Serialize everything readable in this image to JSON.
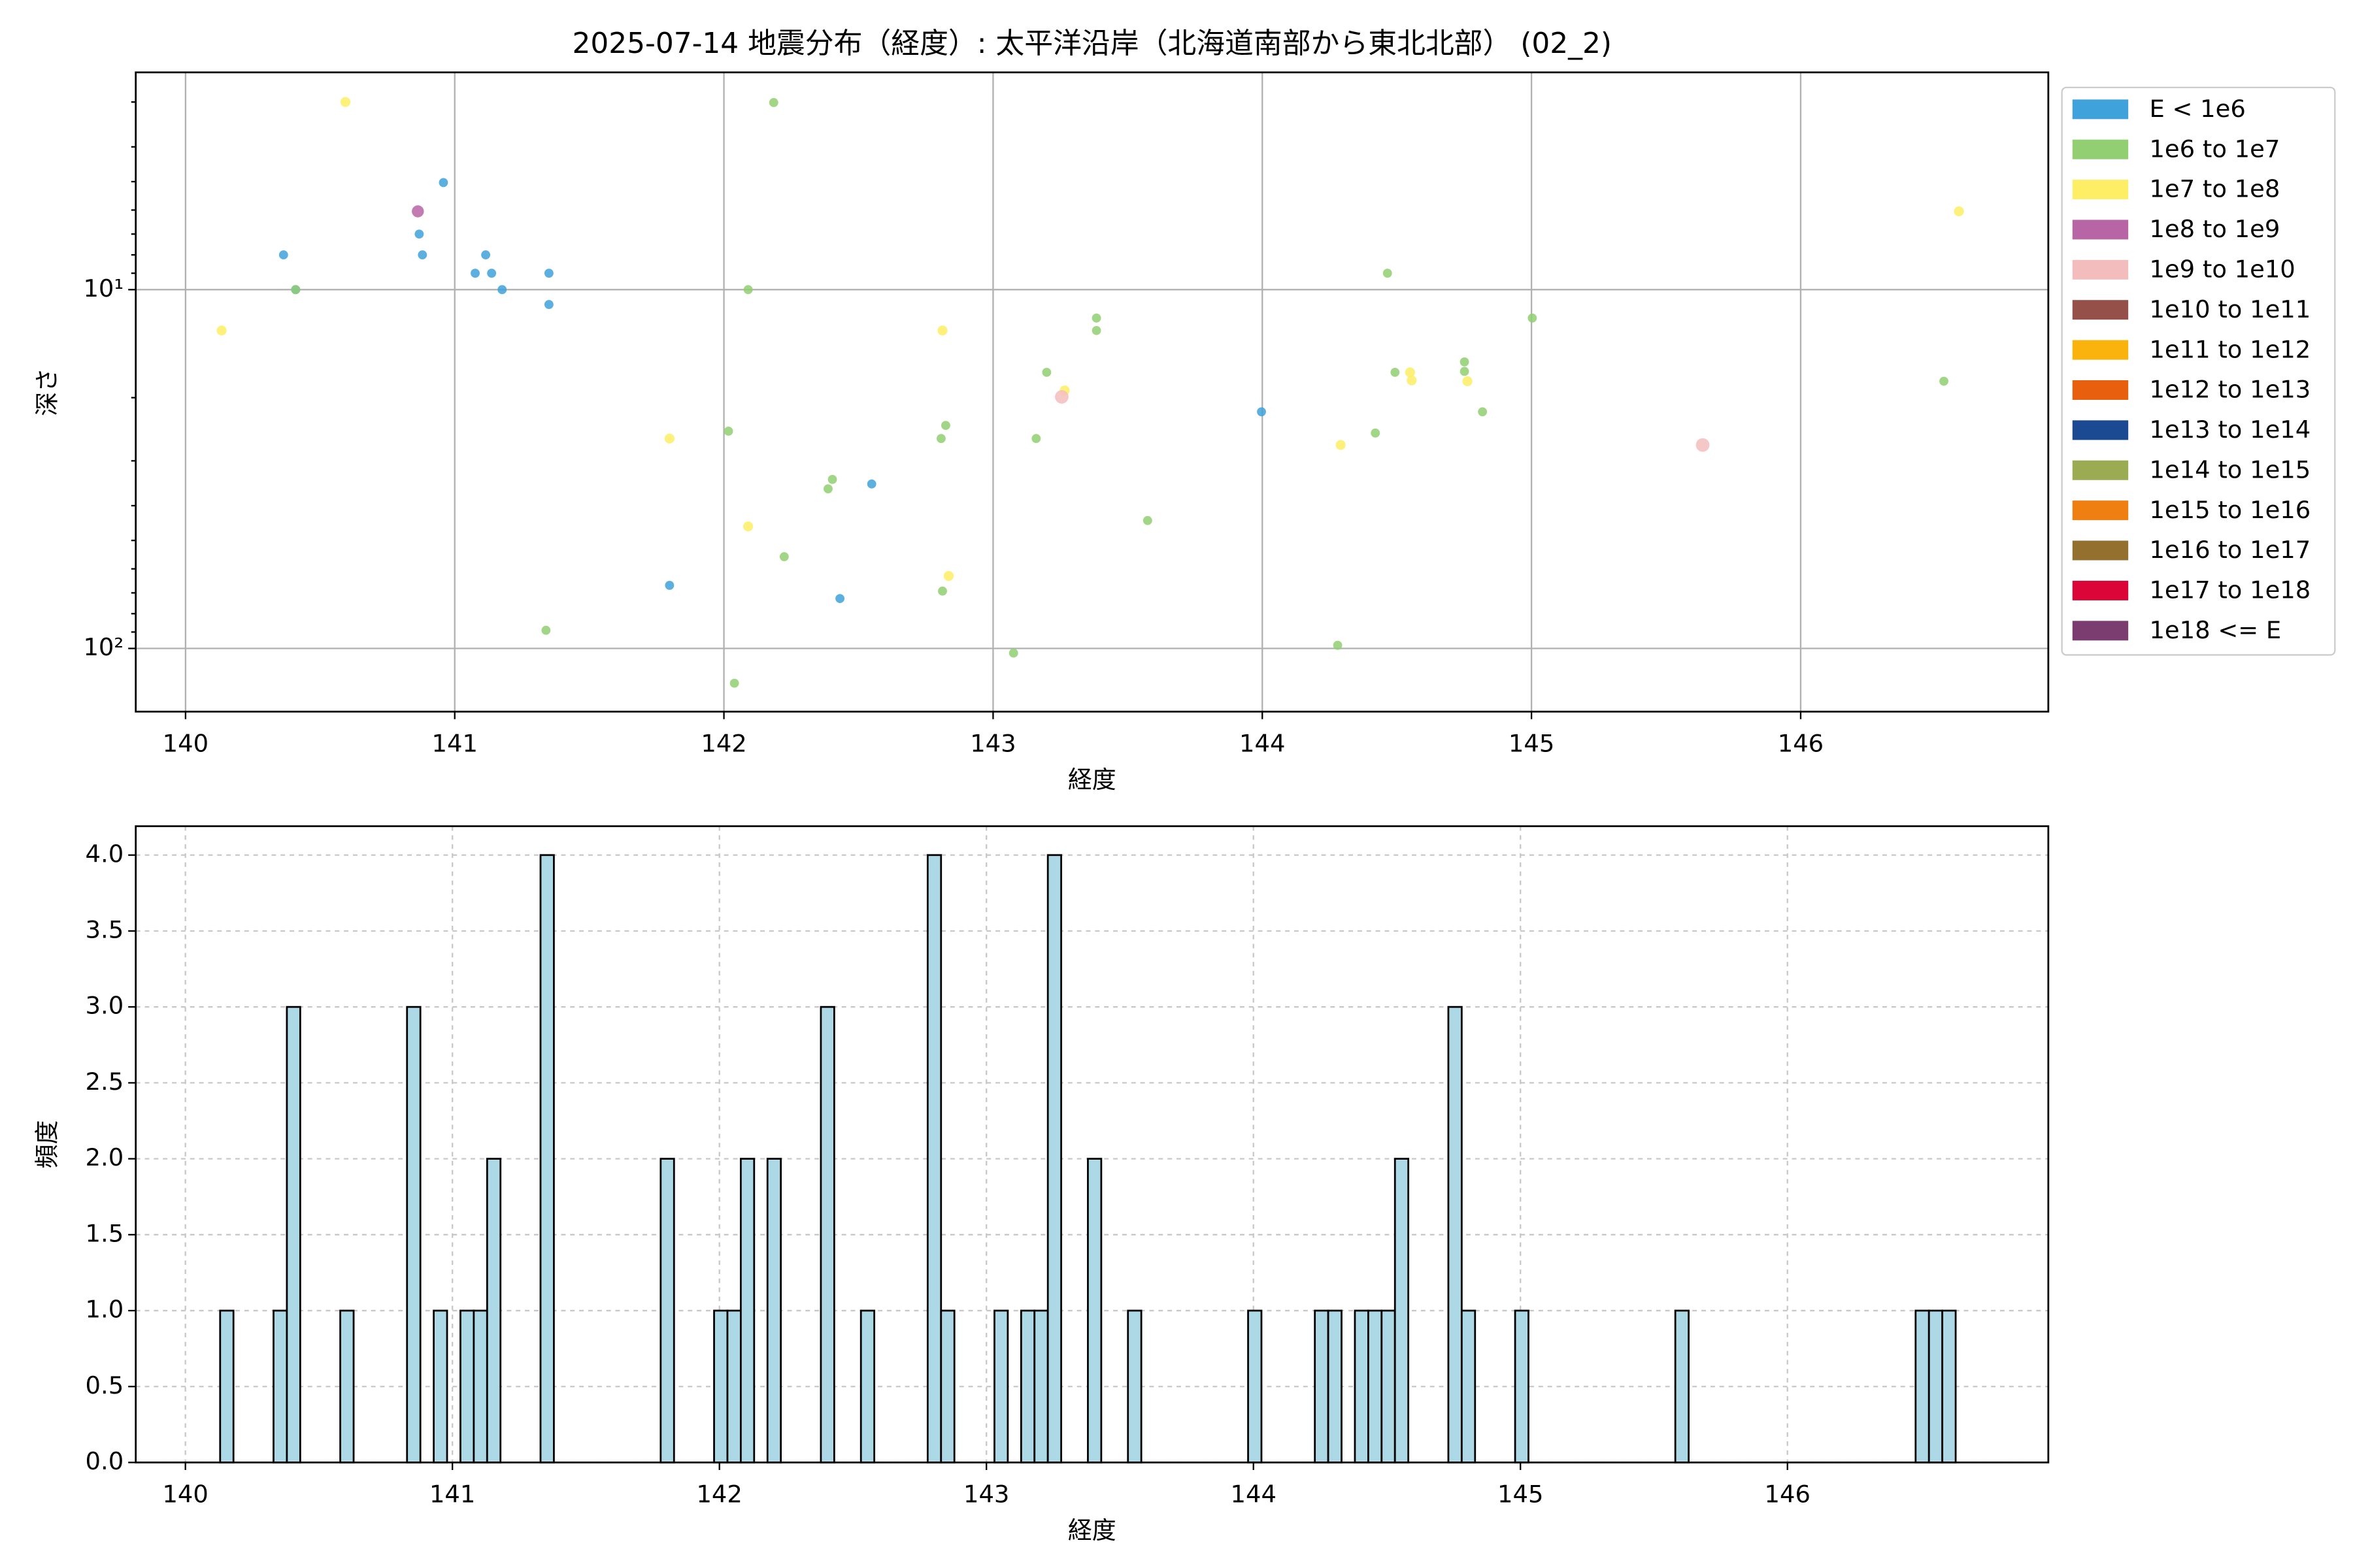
{
  "chart_data": [
    {
      "type": "scatter",
      "title": "2025-07-14 地震分布（経度）: 太平洋沿岸（北海道南部から東北北部） (02_2)",
      "xlabel": "経度",
      "ylabel": "深さ",
      "xlim": [
        139.815,
        146.92
      ],
      "xticks": [
        140,
        141,
        142,
        143,
        144,
        145,
        146
      ],
      "ylim": [
        2.48,
        150
      ],
      "yscale": "log",
      "invert_y": true,
      "yticks": [
        {
          "value": 10,
          "label": "10¹"
        },
        {
          "value": 100,
          "label": "10²"
        }
      ],
      "yminorticks": [
        3,
        4,
        5,
        6,
        7,
        8,
        9,
        20,
        30,
        40,
        50,
        60,
        70,
        80,
        90
      ],
      "grid": true,
      "legend": "outside-right",
      "series": [
        {
          "name": "E < 1e6",
          "color": "#3fa2da",
          "x": [
            140.364,
            140.958,
            140.868,
            140.88,
            141.076,
            141.115,
            141.137,
            141.176,
            141.35,
            141.35,
            140.409,
            141.798,
            142.431,
            142.549,
            143.997
          ],
          "values": [
            8.0,
            5.03,
            7.0,
            8.0,
            9.0,
            8.0,
            9.0,
            10,
            9.0,
            11.0,
            10,
            66.7,
            72.6,
            34.8,
            21.9
          ]
        },
        {
          "name": "1e6 to 1e7",
          "color": "#92cf72",
          "x": [
            140.409,
            142.185,
            142.09,
            141.339,
            142.017,
            142.224,
            142.387,
            142.403,
            142.039,
            142.812,
            142.824,
            142.807,
            143.076,
            143.16,
            143.199,
            143.384,
            143.384,
            143.574,
            144.28,
            144.42,
            144.465,
            144.493,
            144.751,
            144.751,
            144.818,
            145.003,
            146.532
          ],
          "values": [
            10,
            3.01,
            10,
            89,
            24.8,
            55.5,
            35.9,
            33.8,
            125,
            69.2,
            23.9,
            26.0,
            103,
            26.0,
            17.0,
            12.0,
            13.0,
            44.0,
            98,
            25.1,
            9.0,
            17.0,
            15.9,
            16.9,
            21.9,
            12.0,
            18.0
          ]
        },
        {
          "name": "1e7 to 1e8",
          "color": "#fdee65",
          "x": [
            140.594,
            140.134,
            141.798,
            142.09,
            142.812,
            142.835,
            143.266,
            144.291,
            144.549,
            144.555,
            144.762,
            146.588
          ],
          "values": [
            3.0,
            13.0,
            26.0,
            45.7,
            13.0,
            62.8,
            19.1,
            27.1,
            17.0,
            17.9,
            18.0,
            6.05
          ]
        },
        {
          "name": "1e8 to 1e9",
          "color": "#b765a5",
          "x": [
            140.863
          ],
          "values": [
            6.05
          ]
        },
        {
          "name": "1e9 to 1e10",
          "color": "#f4bdbd",
          "x": [
            143.255,
            145.636
          ],
          "values": [
            19.9,
            27.1
          ]
        },
        {
          "name": "1e10 to 1e11",
          "color": "#955149",
          "x": [],
          "values": []
        },
        {
          "name": "1e11 to 1e12",
          "color": "#f9b30c",
          "x": [],
          "values": []
        },
        {
          "name": "1e12 to 1e13",
          "color": "#e8600e",
          "x": [],
          "values": []
        },
        {
          "name": "1e13 to 1e14",
          "color": "#1b4a93",
          "x": [],
          "values": []
        },
        {
          "name": "1e14 to 1e15",
          "color": "#9bab52",
          "x": [],
          "values": []
        },
        {
          "name": "1e15 to 1e16",
          "color": "#f07f11",
          "x": [],
          "values": []
        },
        {
          "name": "1e16 to 1e17",
          "color": "#93702d",
          "x": [],
          "values": []
        },
        {
          "name": "1e17 to 1e18",
          "color": "#db0537",
          "x": [],
          "values": []
        },
        {
          "name": "1e18 <= E",
          "color": "#7b3d6f",
          "x": [],
          "values": []
        }
      ]
    },
    {
      "type": "histogram",
      "xlabel": "経度",
      "ylabel": "頻度",
      "xlim": [
        139.814,
        146.977
      ],
      "xticks": [
        140,
        141,
        142,
        143,
        144,
        145,
        146
      ],
      "ylim": [
        0,
        4.19
      ],
      "yticks": [
        {
          "value": 0,
          "label": "0.0"
        },
        0.5,
        {
          "value": 1,
          "label": "1.0"
        },
        1.5,
        {
          "value": 2,
          "label": "2.0"
        },
        2.5,
        {
          "value": 3,
          "label": "3.0"
        },
        3.5,
        {
          "value": 4,
          "label": "4.0"
        }
      ],
      "grid": true,
      "grid_style": "dashed",
      "color": "#add8e6",
      "edgecolor": "#000000",
      "bins": [
        140.13,
        140.18,
        140.23,
        140.28,
        140.33,
        140.38,
        140.43,
        140.48,
        140.53,
        140.58,
        140.63,
        140.68,
        140.73,
        140.78,
        140.83,
        140.88,
        140.93,
        140.98,
        141.03,
        141.08,
        141.13,
        141.18,
        141.23,
        141.28,
        141.33,
        141.38,
        141.43,
        141.48,
        141.53,
        141.58,
        141.63,
        141.68,
        141.73,
        141.78,
        141.83,
        141.88,
        141.93,
        141.98,
        142.03,
        142.08,
        142.13,
        142.18,
        142.23,
        142.28,
        142.33,
        142.38,
        142.43,
        142.48,
        142.53,
        142.58,
        142.63,
        142.68,
        142.73,
        142.78,
        142.83,
        142.88,
        142.93,
        142.98,
        143.03,
        143.08,
        143.13,
        143.18,
        143.23,
        143.28,
        143.33,
        143.38,
        143.43,
        143.48,
        143.53,
        143.58,
        143.63,
        143.68,
        143.73,
        143.78,
        143.83,
        143.88,
        143.93,
        143.98,
        144.03,
        144.08,
        144.13,
        144.18,
        144.23,
        144.28,
        144.33,
        144.38,
        144.43,
        144.48,
        144.53,
        144.58,
        144.63,
        144.68,
        144.73,
        144.78,
        144.83,
        144.88,
        144.93,
        144.98,
        145.03,
        145.08,
        145.13,
        145.18,
        145.23,
        145.28,
        145.33,
        145.38,
        145.43,
        145.48,
        145.53,
        145.58,
        145.63,
        145.68,
        145.73,
        145.78,
        145.83,
        145.88,
        145.93,
        145.98,
        146.03,
        146.08,
        146.13,
        146.18,
        146.23,
        146.28,
        146.33,
        146.38,
        146.43,
        146.48,
        146.53,
        146.58,
        146.63
      ],
      "values": [
        1,
        0,
        0,
        0,
        1,
        3,
        0,
        0,
        0,
        1,
        0,
        0,
        0,
        0,
        3,
        0,
        1,
        0,
        1,
        1,
        2,
        0,
        0,
        0,
        4,
        0,
        0,
        0,
        0,
        0,
        0,
        0,
        0,
        2,
        0,
        0,
        0,
        1,
        1,
        2,
        0,
        2,
        0,
        0,
        0,
        3,
        0,
        0,
        1,
        0,
        0,
        0,
        0,
        4,
        1,
        0,
        0,
        0,
        1,
        0,
        1,
        1,
        4,
        0,
        0,
        2,
        0,
        0,
        1,
        0,
        0,
        0,
        0,
        0,
        0,
        0,
        0,
        1,
        0,
        0,
        0,
        0,
        1,
        1,
        0,
        1,
        1,
        1,
        2,
        0,
        0,
        0,
        3,
        1,
        0,
        0,
        0,
        1,
        0,
        0,
        0,
        0,
        0,
        0,
        0,
        0,
        0,
        0,
        0,
        1,
        0,
        0,
        0,
        0,
        0,
        0,
        0,
        0,
        0,
        0,
        0,
        0,
        0,
        0,
        0,
        0,
        0,
        1,
        1,
        1
      ]
    }
  ]
}
